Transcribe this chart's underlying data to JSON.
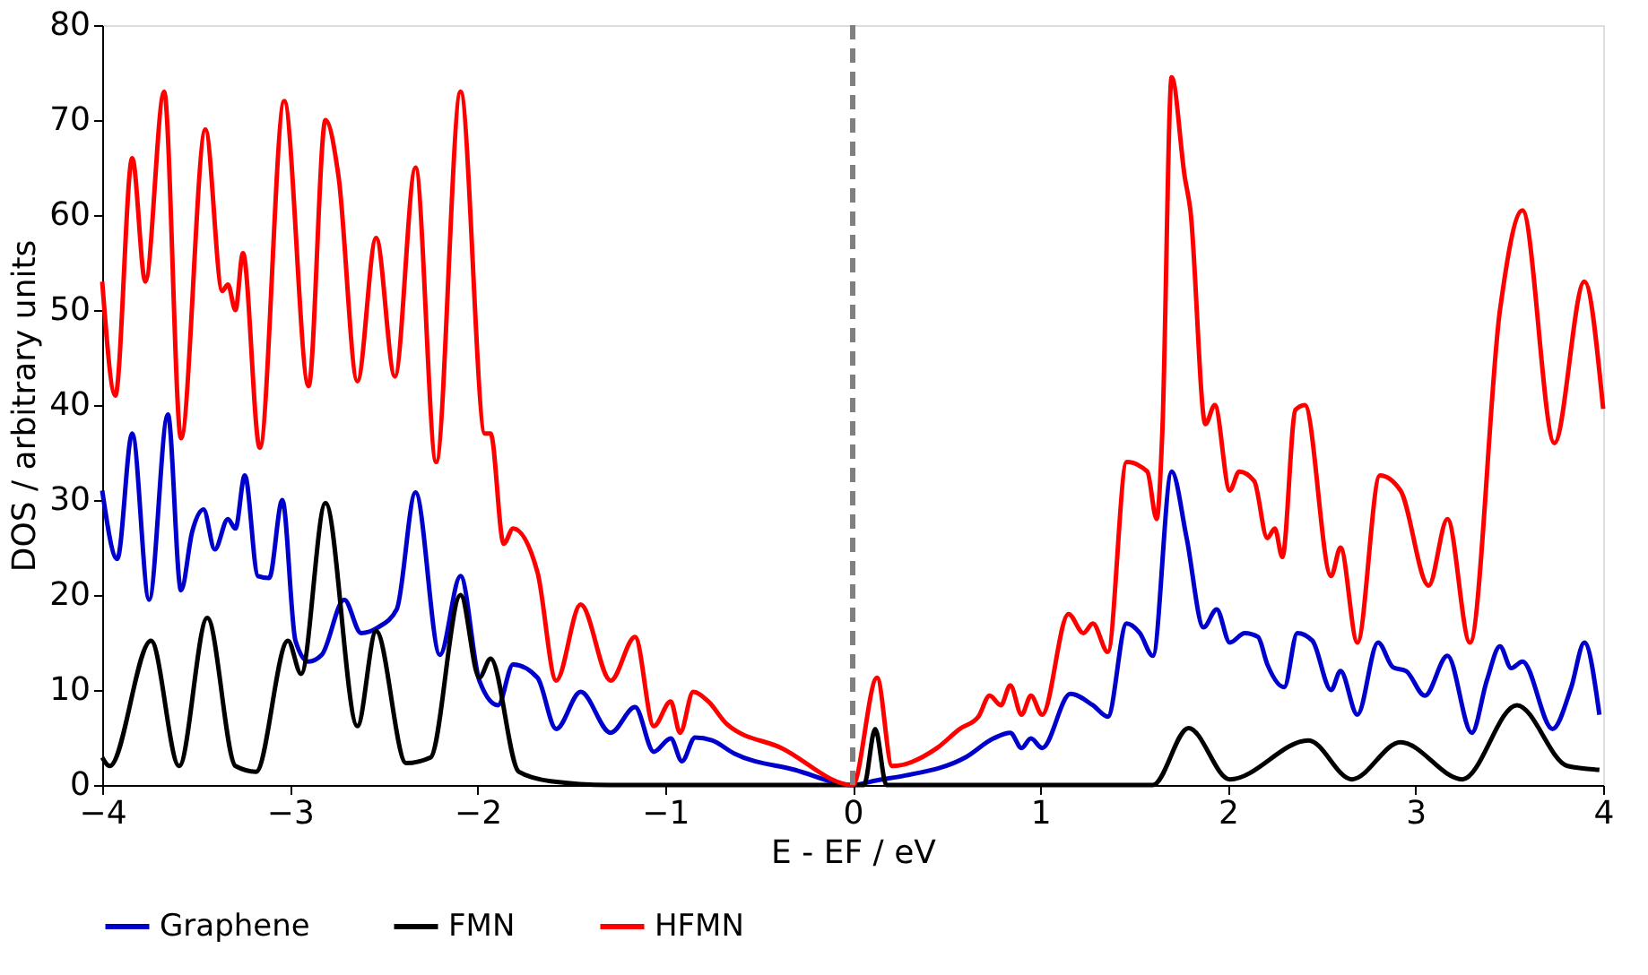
{
  "chart_data": {
    "type": "line",
    "xlabel": "E - EF / eV",
    "ylabel": "DOS / arbitrary units",
    "xlim": [
      -4,
      4
    ],
    "xticks": [
      -4,
      -3,
      -2,
      -1,
      0,
      1,
      2,
      3,
      4
    ],
    "ylim": [
      0,
      80
    ],
    "yticks": [
      0,
      10,
      20,
      30,
      40,
      50,
      60,
      70,
      80
    ],
    "grid": false,
    "legend": "bottom",
    "marker": "none",
    "line_style": "solid",
    "ref_lines": [
      {
        "axis": "x",
        "value": 0,
        "color": "#808080",
        "line_style": "dashed"
      }
    ],
    "series": [
      {
        "name": "Graphene",
        "color": "#0000cc",
        "x": [
          -4,
          -3.92,
          -3.84,
          -3.75,
          -3.65,
          -3.58,
          -3.52,
          -3.46,
          -3.4,
          -3.33,
          -3.29,
          -3.24,
          -3.17,
          -3.11,
          -3.04,
          -2.97,
          -2.9,
          -2.83,
          -2.71,
          -2.62,
          -2.53,
          -2.43,
          -2.33,
          -2.2,
          -2.09,
          -1.99,
          -1.89,
          -1.81,
          -1.68,
          -1.58,
          -1.45,
          -1.29,
          -1.16,
          -1.06,
          -0.97,
          -0.91,
          -0.84,
          -0.75,
          -0.63,
          -0.31,
          0,
          0.13,
          0.28,
          0.6,
          0.75,
          0.84,
          0.9,
          0.95,
          1.01,
          1.16,
          1.28,
          1.36,
          1.46,
          1.53,
          1.6,
          1.7,
          1.78,
          1.87,
          1.94,
          2.01,
          2.09,
          2.16,
          2.21,
          2.3,
          2.37,
          2.45,
          2.55,
          2.6,
          2.69,
          2.8,
          2.88,
          2.95,
          3.05,
          3.17,
          3.3,
          3.38,
          3.45,
          3.51,
          3.57,
          3.73,
          3.83,
          3.9,
          3.98
        ],
        "values": [
          31,
          23.8,
          37,
          19.5,
          39,
          20.5,
          26.7,
          29,
          24.8,
          28,
          27,
          32.6,
          22,
          21.8,
          30,
          15.2,
          13,
          13.7,
          19.5,
          16,
          16.6,
          18.5,
          30.8,
          13.7,
          22,
          11,
          8.4,
          12.7,
          11.3,
          5.9,
          9.8,
          5.5,
          8.2,
          3.5,
          4.9,
          2.5,
          5,
          4.7,
          3.3,
          1.6,
          0,
          0.5,
          1,
          2.9,
          4.9,
          5.5,
          3.9,
          4.9,
          3.9,
          9.6,
          8.4,
          7.2,
          17,
          16,
          13.6,
          33,
          26,
          16.6,
          18.5,
          15,
          16,
          15.6,
          12.7,
          10.3,
          16,
          15.2,
          10,
          12,
          7.4,
          15,
          12.4,
          12,
          9.4,
          13.6,
          5.5,
          11,
          14.6,
          12.3,
          13,
          5.9,
          10.3,
          15,
          7.4
        ]
      },
      {
        "name": "FMN",
        "color": "#000000",
        "x": [
          -4,
          -3.96,
          -3.74,
          -3.59,
          -3.44,
          -3.29,
          -3.18,
          -3.01,
          -2.94,
          -2.81,
          -2.64,
          -2.54,
          -2.38,
          -2.25,
          -2.09,
          -1.99,
          -1.93,
          -1.78,
          -1.61,
          -1.3,
          -0.5,
          0,
          0.06,
          0.12,
          0.18,
          0.5,
          1.6,
          1.79,
          2.01,
          2.43,
          2.66,
          2.92,
          3.25,
          3.54,
          3.81,
          3.98
        ],
        "values": [
          2.9,
          2,
          15.2,
          2,
          17.6,
          2,
          1.4,
          15.2,
          11.7,
          29.7,
          6.2,
          16.2,
          2.3,
          2.9,
          20,
          11.3,
          13.3,
          1.4,
          0.4,
          0,
          0,
          0,
          0,
          5.9,
          0,
          0,
          0,
          6,
          0.6,
          4.7,
          0.6,
          4.5,
          0.6,
          8.4,
          2,
          1.6
        ]
      },
      {
        "name": "HFMN",
        "color": "#ff0000",
        "x": [
          -4,
          -3.93,
          -3.84,
          -3.77,
          -3.67,
          -3.58,
          -3.45,
          -3.36,
          -3.33,
          -3.29,
          -3.25,
          -3.16,
          -3.03,
          -2.9,
          -2.81,
          -2.74,
          -2.64,
          -2.54,
          -2.44,
          -2.33,
          -2.22,
          -2.09,
          -1.96,
          -1.93,
          -1.86,
          -1.81,
          -1.68,
          -1.58,
          -1.45,
          -1.29,
          -1.16,
          -1.06,
          -0.97,
          -0.92,
          -0.85,
          -0.77,
          -0.67,
          -0.38,
          0,
          0.13,
          0.21,
          0.45,
          0.57,
          0.67,
          0.73,
          0.79,
          0.84,
          0.9,
          0.95,
          1.01,
          1.15,
          1.23,
          1.28,
          1.36,
          1.46,
          1.57,
          1.62,
          1.65,
          1.7,
          1.77,
          1.8,
          1.88,
          1.93,
          2.01,
          2.06,
          2.14,
          2.21,
          2.25,
          2.29,
          2.36,
          2.41,
          2.55,
          2.6,
          2.69,
          2.81,
          2.92,
          3.07,
          3.17,
          3.29,
          3.45,
          3.57,
          3.74,
          3.9,
          4
        ],
        "values": [
          53,
          41,
          66,
          53,
          73,
          36.5,
          69,
          52,
          52.7,
          50,
          56,
          35.5,
          72,
          42,
          70,
          64,
          42.5,
          57.6,
          43,
          65,
          34,
          73,
          37,
          37,
          25.4,
          27,
          22.4,
          11,
          19,
          11,
          15.6,
          6.2,
          8.8,
          5.5,
          9.8,
          8.8,
          6.4,
          3.9,
          0,
          11.3,
          2,
          3.9,
          5.9,
          7.2,
          9.4,
          8.4,
          10.5,
          7.4,
          9.4,
          7.4,
          18,
          16,
          17,
          14,
          34,
          33,
          28,
          37,
          74.5,
          64,
          60.5,
          38,
          40,
          31,
          33,
          32,
          26,
          27,
          24,
          39.5,
          40,
          22,
          25,
          15,
          32.6,
          31,
          21,
          28,
          15,
          50,
          60.5,
          36,
          53,
          39.6
        ]
      }
    ]
  }
}
